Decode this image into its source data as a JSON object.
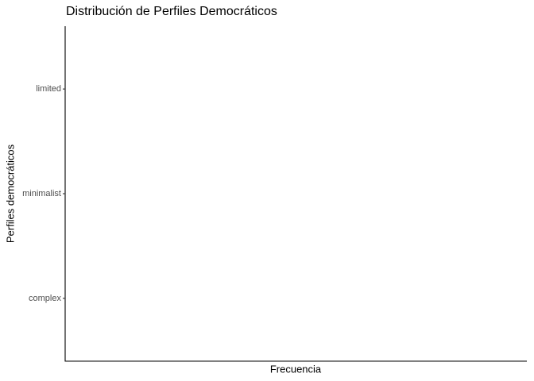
{
  "chart_data": {
    "type": "bar",
    "orientation": "horizontal",
    "title": "Distribución de Perfiles Democráticos",
    "x_label": "Frecuencia",
    "y_label": "Perfiles democráticos",
    "categories": [
      "complex",
      "minimalist",
      "limited"
    ]
  }
}
